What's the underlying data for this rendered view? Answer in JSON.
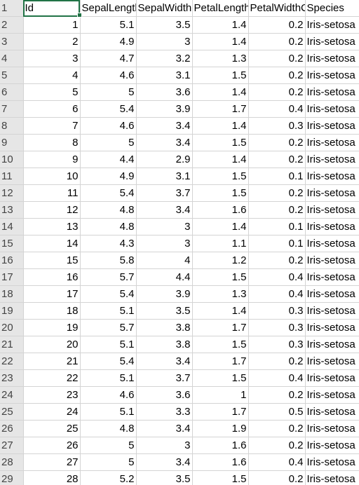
{
  "headers": [
    "Id",
    "SepalLengthCm",
    "SepalWidthCm",
    "PetalLengthCm",
    "PetalWidthCm",
    "Species"
  ],
  "header_row_number": "1",
  "rows": [
    {
      "n": "2",
      "c": [
        "1",
        "5.1",
        "3.5",
        "1.4",
        "0.2",
        "Iris-setosa"
      ]
    },
    {
      "n": "3",
      "c": [
        "2",
        "4.9",
        "3",
        "1.4",
        "0.2",
        "Iris-setosa"
      ]
    },
    {
      "n": "4",
      "c": [
        "3",
        "4.7",
        "3.2",
        "1.3",
        "0.2",
        "Iris-setosa"
      ]
    },
    {
      "n": "5",
      "c": [
        "4",
        "4.6",
        "3.1",
        "1.5",
        "0.2",
        "Iris-setosa"
      ]
    },
    {
      "n": "6",
      "c": [
        "5",
        "5",
        "3.6",
        "1.4",
        "0.2",
        "Iris-setosa"
      ]
    },
    {
      "n": "7",
      "c": [
        "6",
        "5.4",
        "3.9",
        "1.7",
        "0.4",
        "Iris-setosa"
      ]
    },
    {
      "n": "8",
      "c": [
        "7",
        "4.6",
        "3.4",
        "1.4",
        "0.3",
        "Iris-setosa"
      ]
    },
    {
      "n": "9",
      "c": [
        "8",
        "5",
        "3.4",
        "1.5",
        "0.2",
        "Iris-setosa"
      ]
    },
    {
      "n": "10",
      "c": [
        "9",
        "4.4",
        "2.9",
        "1.4",
        "0.2",
        "Iris-setosa"
      ]
    },
    {
      "n": "11",
      "c": [
        "10",
        "4.9",
        "3.1",
        "1.5",
        "0.1",
        "Iris-setosa"
      ]
    },
    {
      "n": "12",
      "c": [
        "11",
        "5.4",
        "3.7",
        "1.5",
        "0.2",
        "Iris-setosa"
      ]
    },
    {
      "n": "13",
      "c": [
        "12",
        "4.8",
        "3.4",
        "1.6",
        "0.2",
        "Iris-setosa"
      ]
    },
    {
      "n": "14",
      "c": [
        "13",
        "4.8",
        "3",
        "1.4",
        "0.1",
        "Iris-setosa"
      ]
    },
    {
      "n": "15",
      "c": [
        "14",
        "4.3",
        "3",
        "1.1",
        "0.1",
        "Iris-setosa"
      ]
    },
    {
      "n": "16",
      "c": [
        "15",
        "5.8",
        "4",
        "1.2",
        "0.2",
        "Iris-setosa"
      ]
    },
    {
      "n": "17",
      "c": [
        "16",
        "5.7",
        "4.4",
        "1.5",
        "0.4",
        "Iris-setosa"
      ]
    },
    {
      "n": "18",
      "c": [
        "17",
        "5.4",
        "3.9",
        "1.3",
        "0.4",
        "Iris-setosa"
      ]
    },
    {
      "n": "19",
      "c": [
        "18",
        "5.1",
        "3.5",
        "1.4",
        "0.3",
        "Iris-setosa"
      ]
    },
    {
      "n": "20",
      "c": [
        "19",
        "5.7",
        "3.8",
        "1.7",
        "0.3",
        "Iris-setosa"
      ]
    },
    {
      "n": "21",
      "c": [
        "20",
        "5.1",
        "3.8",
        "1.5",
        "0.3",
        "Iris-setosa"
      ]
    },
    {
      "n": "22",
      "c": [
        "21",
        "5.4",
        "3.4",
        "1.7",
        "0.2",
        "Iris-setosa"
      ]
    },
    {
      "n": "23",
      "c": [
        "22",
        "5.1",
        "3.7",
        "1.5",
        "0.4",
        "Iris-setosa"
      ]
    },
    {
      "n": "24",
      "c": [
        "23",
        "4.6",
        "3.6",
        "1",
        "0.2",
        "Iris-setosa"
      ]
    },
    {
      "n": "25",
      "c": [
        "24",
        "5.1",
        "3.3",
        "1.7",
        "0.5",
        "Iris-setosa"
      ]
    },
    {
      "n": "26",
      "c": [
        "25",
        "4.8",
        "3.4",
        "1.9",
        "0.2",
        "Iris-setosa"
      ]
    },
    {
      "n": "27",
      "c": [
        "26",
        "5",
        "3",
        "1.6",
        "0.2",
        "Iris-setosa"
      ]
    },
    {
      "n": "28",
      "c": [
        "27",
        "5",
        "3.4",
        "1.6",
        "0.4",
        "Iris-setosa"
      ]
    },
    {
      "n": "29",
      "c": [
        "28",
        "5.2",
        "3.5",
        "1.5",
        "0.2",
        "Iris-setosa"
      ]
    }
  ],
  "selection_color": "#217346"
}
